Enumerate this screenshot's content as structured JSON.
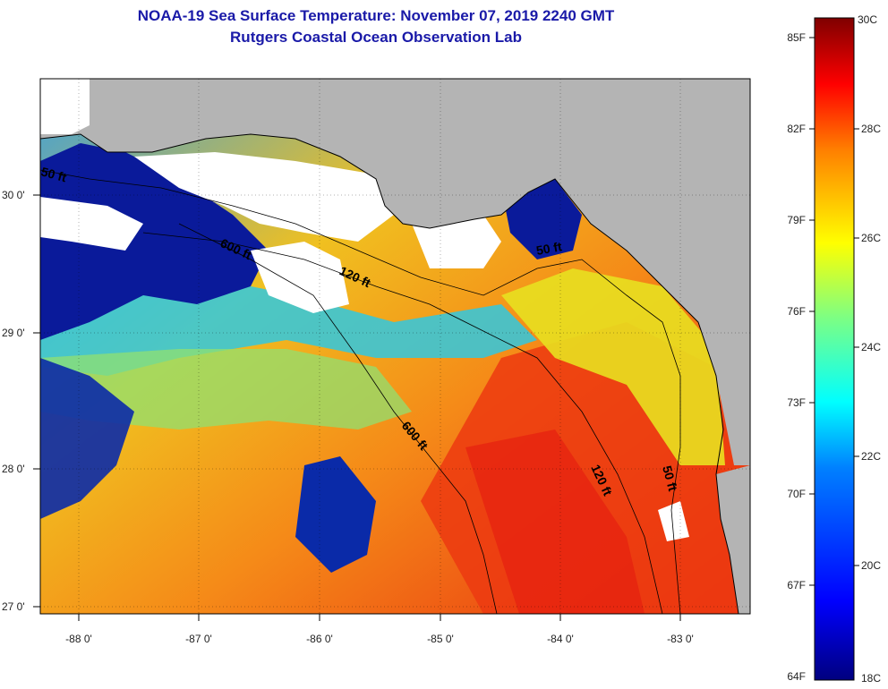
{
  "title": {
    "line1": "NOAA-19 Sea Surface Temperature:  November 07, 2019 2240 GMT",
    "line2": "Rutgers Coastal Ocean Observation Lab"
  },
  "map": {
    "lon_ticks": [
      "-88 0'",
      "-87 0'",
      "-86 0'",
      "-85 0'",
      "-84 0'",
      "-83 0'"
    ],
    "lat_ticks": [
      "30 0'",
      "29 0'",
      "28 0'",
      "27 0'"
    ],
    "contour_labels": [
      "50 ft",
      "600 ft",
      "120 ft",
      "50 ft",
      "600 ft",
      "120 ft",
      "50 ft"
    ],
    "colors": {
      "land": "#b4b4b4",
      "cloud": "#ffffff",
      "cold": "#0a1a9a",
      "warm": "#f05a10"
    }
  },
  "colorbar": {
    "fahrenheit_labels": [
      "85F",
      "82F",
      "79F",
      "76F",
      "73F",
      "70F",
      "67F",
      "64F"
    ],
    "celsius_labels": [
      "30C",
      "28C",
      "26C",
      "24C",
      "22C",
      "20C",
      "18C"
    ],
    "range_c": [
      18,
      30
    ],
    "colors": [
      "#00007f",
      "#0000ff",
      "#0080ff",
      "#00ffff",
      "#80ff80",
      "#ffff00",
      "#ff8000",
      "#ff0000",
      "#7f0000"
    ]
  }
}
